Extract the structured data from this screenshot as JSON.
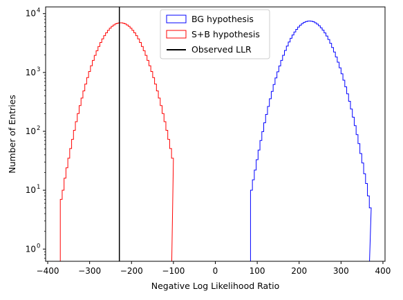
{
  "chart_data": {
    "type": "histogram",
    "xlabel": "Negative Log Likelihood Ratio",
    "ylabel": "Number of Entries",
    "xlim": [
      -405,
      405
    ],
    "ylim": [
      0.62,
      13000
    ],
    "y_scale": "log",
    "x_ticks": [
      -400,
      -300,
      -200,
      -100,
      0,
      100,
      200,
      300,
      400
    ],
    "x_tick_labels": [
      "−400",
      "−300",
      "−200",
      "−100",
      "0",
      "100",
      "200",
      "300",
      "400"
    ],
    "y_ticks": [
      1,
      10,
      100,
      1000,
      10000
    ],
    "y_tick_labels": [
      "10",
      "10",
      "10",
      "10",
      "10"
    ],
    "y_tick_exponents": [
      "0",
      "1",
      "2",
      "3",
      "4"
    ],
    "grid": false,
    "legend_position": "upper-center",
    "series": [
      {
        "name": "BG hypothesis",
        "color": "#0000ff",
        "style": "step",
        "mean": 225,
        "sigma": 38,
        "peak": 7500,
        "range": [
          84,
          368
        ],
        "bin_width": 4.5
      },
      {
        "name": "S+B hypothesis",
        "color": "#ff0000",
        "style": "step",
        "mean": -226,
        "sigma": 38,
        "peak": 7000,
        "range": [
          -370,
          -104
        ],
        "bin_width": 4.5
      }
    ],
    "observed": {
      "name": "Observed LLR",
      "color": "#000000",
      "x": -229
    }
  }
}
